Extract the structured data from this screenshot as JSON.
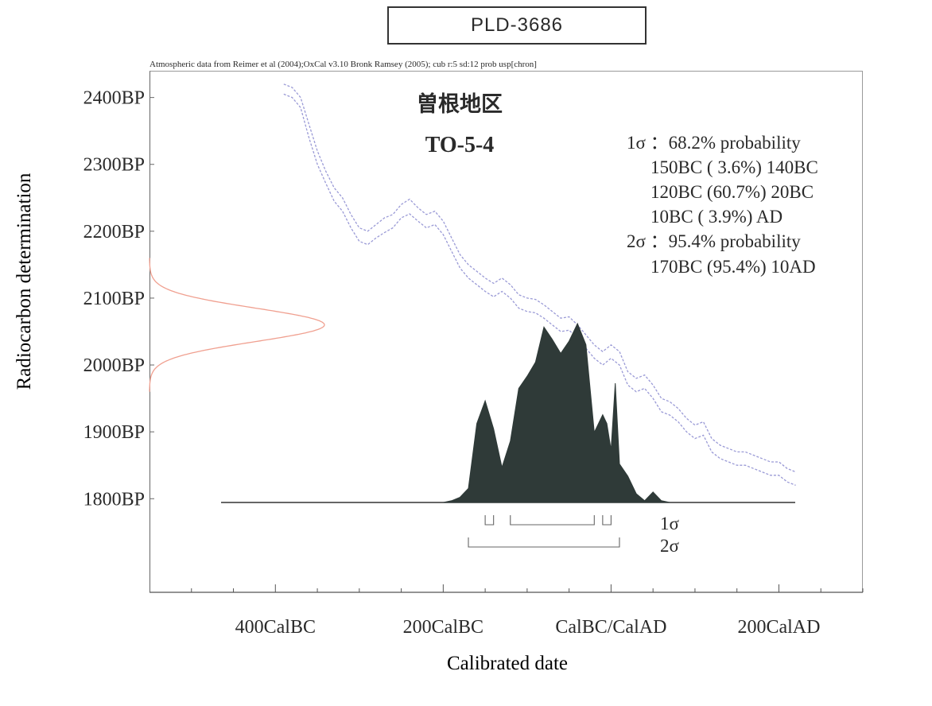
{
  "header": {
    "sample_id": "PLD-3686",
    "source_note": "Atmospheric data from Reimer et al (2004);OxCal v3.10 Bronk Ramsey (2005); cub r:5 sd:12 prob usp[chron]"
  },
  "annotation": {
    "site": "曽根地区",
    "sample": "TO-5-4",
    "lines": [
      "1σ ：68.2% probability",
      "150BC ( 3.6%) 140BC",
      "120BC (60.7%) 20BC",
      "10BC ( 3.9%) AD",
      "2σ ：95.4% probability",
      "170BC (95.4%) 10AD"
    ]
  },
  "chart_data": {
    "type": "area",
    "xlabel": "Calibrated date",
    "ylabel": "Radiocarbon determination",
    "x_ticks": [
      {
        "value": -400,
        "label": "400CalBC"
      },
      {
        "value": -200,
        "label": "200CalBC"
      },
      {
        "value": 0,
        "label": "CalBC/CalAD"
      },
      {
        "value": 200,
        "label": "200CalAD"
      }
    ],
    "y_ticks": [
      {
        "value": 2400,
        "label": "2400BP"
      },
      {
        "value": 2300,
        "label": "2300BP"
      },
      {
        "value": 2200,
        "label": "2200BP"
      },
      {
        "value": 2100,
        "label": "2100BP"
      },
      {
        "value": 2000,
        "label": "2000BP"
      },
      {
        "value": 1900,
        "label": "1900BP"
      },
      {
        "value": 1800,
        "label": "1800BP"
      }
    ],
    "xlim": [
      -550,
      300
    ],
    "ylim": [
      1660,
      2440
    ],
    "measured_bp": {
      "mean": 2060,
      "sd": 25
    },
    "calibration_curve_upper": [
      [
        -390,
        2420
      ],
      [
        -380,
        2415
      ],
      [
        -370,
        2400
      ],
      [
        -360,
        2360
      ],
      [
        -350,
        2320
      ],
      [
        -340,
        2290
      ],
      [
        -330,
        2265
      ],
      [
        -320,
        2250
      ],
      [
        -310,
        2225
      ],
      [
        -300,
        2205
      ],
      [
        -290,
        2200
      ],
      [
        -280,
        2210
      ],
      [
        -270,
        2220
      ],
      [
        -260,
        2225
      ],
      [
        -250,
        2240
      ],
      [
        -240,
        2248
      ],
      [
        -230,
        2235
      ],
      [
        -220,
        2225
      ],
      [
        -210,
        2230
      ],
      [
        -200,
        2215
      ],
      [
        -190,
        2190
      ],
      [
        -180,
        2165
      ],
      [
        -170,
        2150
      ],
      [
        -160,
        2140
      ],
      [
        -150,
        2130
      ],
      [
        -140,
        2122
      ],
      [
        -130,
        2130
      ],
      [
        -120,
        2120
      ],
      [
        -110,
        2105
      ],
      [
        -100,
        2100
      ],
      [
        -90,
        2098
      ],
      [
        -80,
        2090
      ],
      [
        -70,
        2080
      ],
      [
        -60,
        2070
      ],
      [
        -50,
        2072
      ],
      [
        -40,
        2060
      ],
      [
        -30,
        2045
      ],
      [
        -20,
        2030
      ],
      [
        -10,
        2020
      ],
      [
        0,
        2030
      ],
      [
        10,
        2020
      ],
      [
        20,
        1990
      ],
      [
        30,
        1980
      ],
      [
        40,
        1985
      ],
      [
        50,
        1970
      ],
      [
        60,
        1950
      ],
      [
        70,
        1945
      ],
      [
        80,
        1935
      ],
      [
        90,
        1920
      ],
      [
        100,
        1910
      ],
      [
        110,
        1915
      ],
      [
        120,
        1890
      ],
      [
        130,
        1880
      ],
      [
        140,
        1875
      ],
      [
        150,
        1870
      ],
      [
        160,
        1870
      ],
      [
        170,
        1865
      ],
      [
        180,
        1860
      ],
      [
        190,
        1855
      ],
      [
        200,
        1855
      ],
      [
        210,
        1845
      ],
      [
        220,
        1840
      ]
    ],
    "calibration_curve_lower": [
      [
        -390,
        2405
      ],
      [
        -380,
        2400
      ],
      [
        -370,
        2385
      ],
      [
        -360,
        2340
      ],
      [
        -350,
        2300
      ],
      [
        -340,
        2272
      ],
      [
        -330,
        2245
      ],
      [
        -320,
        2230
      ],
      [
        -310,
        2205
      ],
      [
        -300,
        2185
      ],
      [
        -290,
        2180
      ],
      [
        -280,
        2190
      ],
      [
        -270,
        2198
      ],
      [
        -260,
        2205
      ],
      [
        -250,
        2220
      ],
      [
        -240,
        2226
      ],
      [
        -230,
        2215
      ],
      [
        -220,
        2205
      ],
      [
        -210,
        2210
      ],
      [
        -200,
        2195
      ],
      [
        -190,
        2170
      ],
      [
        -180,
        2145
      ],
      [
        -170,
        2130
      ],
      [
        -160,
        2120
      ],
      [
        -150,
        2110
      ],
      [
        -140,
        2102
      ],
      [
        -130,
        2110
      ],
      [
        -120,
        2100
      ],
      [
        -110,
        2085
      ],
      [
        -100,
        2080
      ],
      [
        -90,
        2078
      ],
      [
        -80,
        2070
      ],
      [
        -70,
        2060
      ],
      [
        -60,
        2050
      ],
      [
        -50,
        2052
      ],
      [
        -40,
        2040
      ],
      [
        -30,
        2025
      ],
      [
        -20,
        2010
      ],
      [
        -10,
        2000
      ],
      [
        0,
        2010
      ],
      [
        10,
        2000
      ],
      [
        20,
        1970
      ],
      [
        30,
        1960
      ],
      [
        40,
        1965
      ],
      [
        50,
        1950
      ],
      [
        60,
        1930
      ],
      [
        70,
        1925
      ],
      [
        80,
        1915
      ],
      [
        90,
        1900
      ],
      [
        100,
        1890
      ],
      [
        110,
        1895
      ],
      [
        120,
        1870
      ],
      [
        130,
        1860
      ],
      [
        140,
        1855
      ],
      [
        150,
        1850
      ],
      [
        160,
        1850
      ],
      [
        170,
        1845
      ],
      [
        180,
        1840
      ],
      [
        190,
        1835
      ],
      [
        200,
        1835
      ],
      [
        210,
        1825
      ],
      [
        220,
        1820
      ]
    ],
    "posterior_probability": [
      [
        -200,
        0
      ],
      [
        -190,
        0.01
      ],
      [
        -180,
        0.03
      ],
      [
        -170,
        0.08
      ],
      [
        -160,
        0.45
      ],
      [
        -150,
        0.58
      ],
      [
        -140,
        0.42
      ],
      [
        -130,
        0.2
      ],
      [
        -120,
        0.35
      ],
      [
        -110,
        0.65
      ],
      [
        -100,
        0.72
      ],
      [
        -90,
        0.8
      ],
      [
        -80,
        1.0
      ],
      [
        -70,
        0.93
      ],
      [
        -60,
        0.85
      ],
      [
        -50,
        0.92
      ],
      [
        -40,
        1.02
      ],
      [
        -30,
        0.9
      ],
      [
        -20,
        0.4
      ],
      [
        -10,
        0.5
      ],
      [
        -5,
        0.45
      ],
      [
        0,
        0.3
      ],
      [
        5,
        0.68
      ],
      [
        10,
        0.22
      ],
      [
        20,
        0.15
      ],
      [
        30,
        0.05
      ],
      [
        40,
        0.01
      ],
      [
        50,
        0.06
      ],
      [
        60,
        0.01
      ],
      [
        70,
        0
      ]
    ],
    "sigma_ranges": [
      {
        "label": "1σ",
        "ranges": [
          [
            -150,
            -140
          ],
          [
            -120,
            -20
          ],
          [
            -10,
            0
          ]
        ]
      },
      {
        "label": "2σ",
        "ranges": [
          [
            -170,
            10
          ]
        ]
      }
    ]
  }
}
